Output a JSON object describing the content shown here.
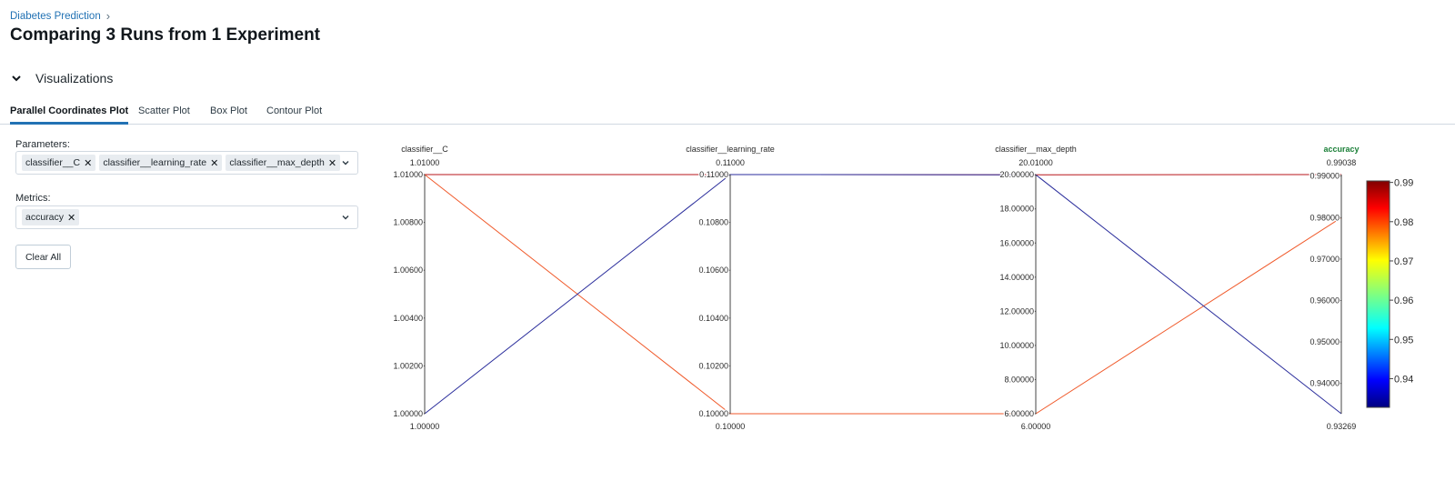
{
  "breadcrumb": {
    "item": "Diabetes Prediction",
    "separator": "›"
  },
  "page_title": "Comparing 3 Runs from 1 Experiment",
  "section": {
    "title": "Visualizations",
    "icon": "chevron-down-icon"
  },
  "tabs": [
    {
      "label": "Parallel Coordinates Plot",
      "active": true
    },
    {
      "label": "Scatter Plot",
      "active": false
    },
    {
      "label": "Box Plot",
      "active": false
    },
    {
      "label": "Contour Plot",
      "active": false
    }
  ],
  "parameters": {
    "label": "Parameters:",
    "chips": [
      "classifier__C",
      "classifier__learning_rate",
      "classifier__max_depth"
    ],
    "remove_icon": "close-icon"
  },
  "metrics": {
    "label": "Metrics:",
    "chips": [
      "accuracy"
    ],
    "remove_icon": "close-icon"
  },
  "clear_all": "Clear All",
  "colors": {
    "accent": "#2272b4",
    "metric_label": "#1a7f37"
  },
  "chart_data": {
    "type": "parallel-coordinates",
    "axes": [
      {
        "name": "classifier__C",
        "range": [
          1.0,
          1.01
        ],
        "max_label": "1.01000",
        "min_label": "1.00000",
        "ticks": [
          "1.01000",
          "1.00800",
          "1.00600",
          "1.00400",
          "1.00200",
          "1.00000"
        ]
      },
      {
        "name": "classifier__learning_rate",
        "range": [
          0.1,
          0.11
        ],
        "max_label": "0.11000",
        "min_label": "0.10000",
        "ticks": [
          "0.11000",
          "0.10800",
          "0.10600",
          "0.10400",
          "0.10200",
          "0.10000"
        ]
      },
      {
        "name": "classifier__max_depth",
        "range": [
          6.0,
          20.01
        ],
        "max_label": "20.01000",
        "min_label": "6.00000",
        "ticks": [
          "20.00000",
          "18.00000",
          "16.00000",
          "14.00000",
          "12.00000",
          "10.00000",
          "8.00000",
          "6.00000"
        ],
        "tick_values": [
          20,
          18,
          16,
          14,
          12,
          10,
          8,
          6
        ]
      },
      {
        "name": "accuracy",
        "range": [
          0.93269,
          0.99038
        ],
        "max_label": "0.99038",
        "min_label": "0.93269",
        "ticks": [
          "0.99000",
          "0.98000",
          "0.97000",
          "0.96000",
          "0.95000",
          "0.94000"
        ],
        "tick_values": [
          0.99,
          0.98,
          0.97,
          0.96,
          0.95,
          0.94
        ],
        "is_metric": true
      }
    ],
    "runs": [
      {
        "values": [
          1.01,
          0.11,
          20.0,
          0.99038
        ],
        "color": "#b8161b"
      },
      {
        "values": [
          1.01,
          0.1,
          6.0,
          0.98
        ],
        "color": "#f05a2b"
      },
      {
        "values": [
          1.0,
          0.11,
          20.0,
          0.93269
        ],
        "color": "#2b2e9c"
      }
    ],
    "colorbar": {
      "range": [
        0.93269,
        0.99038
      ],
      "ticks": [
        "0.99",
        "0.98",
        "0.97",
        "0.96",
        "0.95",
        "0.94"
      ],
      "tick_values": [
        0.99,
        0.98,
        0.97,
        0.96,
        0.95,
        0.94
      ]
    }
  }
}
